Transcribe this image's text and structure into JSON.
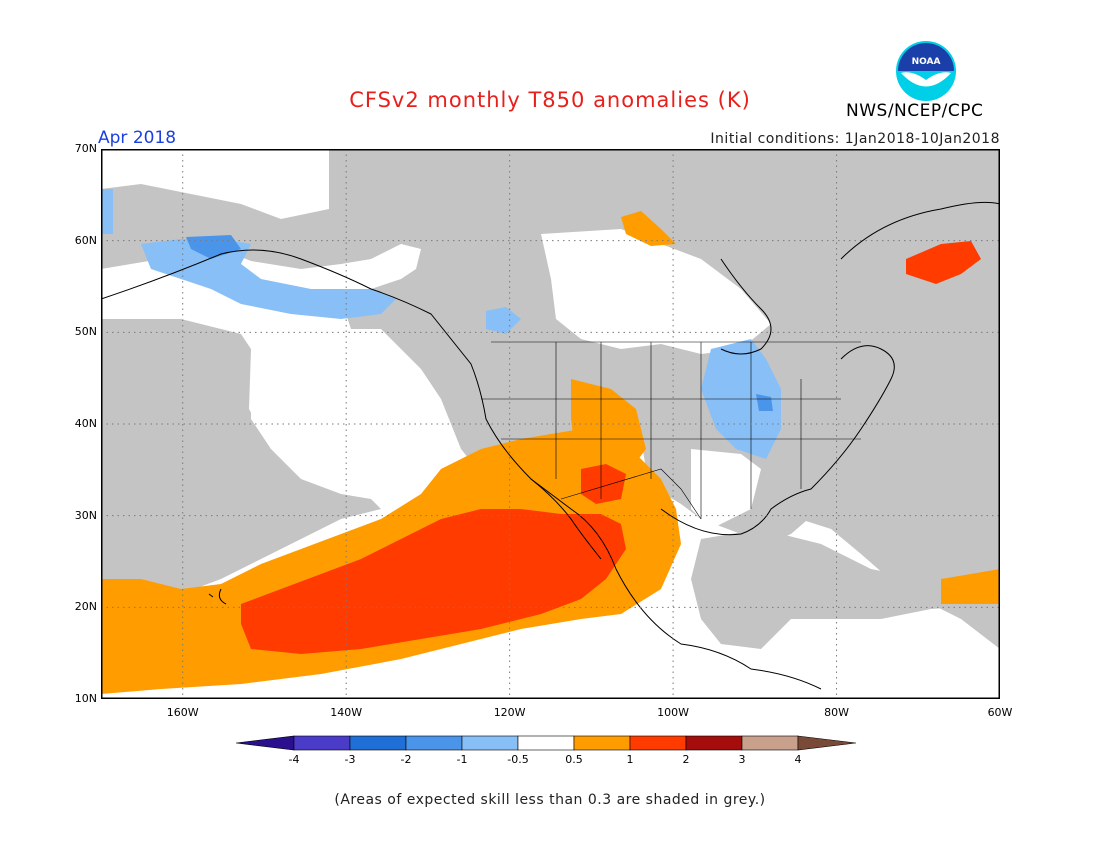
{
  "title": "CFSv2 monthly T850 anomalies (K)",
  "organization": "NWS/NCEP/CPC",
  "logo_text": "NOAA",
  "month_label": "Apr 2018",
  "initial_conditions": "Initial conditions: 1Jan2018-10Jan2018",
  "footnote": "(Areas of expected skill less than 0.3 are shaded in grey.)",
  "map": {
    "lon_range": [
      -170,
      -60
    ],
    "lat_range": [
      10,
      70
    ],
    "lat_labels": [
      "70N",
      "60N",
      "50N",
      "40N",
      "30N",
      "20N",
      "10N"
    ],
    "lon_labels": [
      "160W",
      "140W",
      "120W",
      "100W",
      "80W",
      "60W"
    ],
    "grey_meaning": "skill < 0.3"
  },
  "colorbar": {
    "labels": [
      "-4",
      "-3",
      "-2",
      "-1",
      "-0.5",
      "0.5",
      "1",
      "2",
      "3",
      "4"
    ],
    "colors": [
      "#2a0f8f",
      "#4b3bc9",
      "#1f6fd6",
      "#4a95ea",
      "#87bff6",
      "#ffffff",
      "#ff9d00",
      "#ff3b00",
      "#a50d0d",
      "#c8a08c",
      "#7a4a38"
    ]
  },
  "colors": {
    "title": "#e8201c",
    "month": "#1a3fe0",
    "skill_grey": "#c4c4c4",
    "warm_weak": "#ff9d00",
    "warm_strong": "#ff3b00",
    "cool_weak": "#87bff6",
    "cool_mid": "#4a95ea"
  }
}
